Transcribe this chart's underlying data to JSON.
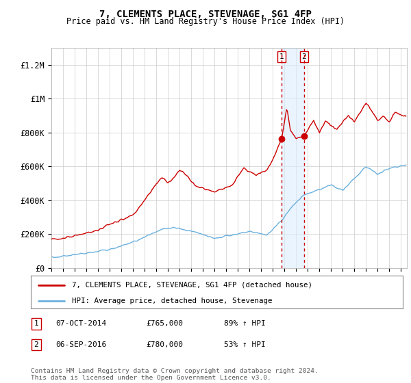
{
  "title": "7, CLEMENTS PLACE, STEVENAGE, SG1 4FP",
  "subtitle": "Price paid vs. HM Land Registry's House Price Index (HPI)",
  "legend_line1": "7, CLEMENTS PLACE, STEVENAGE, SG1 4FP (detached house)",
  "legend_line2": "HPI: Average price, detached house, Stevenage",
  "footnote": "Contains HM Land Registry data © Crown copyright and database right 2024.\nThis data is licensed under the Open Government Licence v3.0.",
  "transaction1_label": "1",
  "transaction1_date": "07-OCT-2014",
  "transaction1_price": "£765,000",
  "transaction1_hpi": "89% ↑ HPI",
  "transaction2_label": "2",
  "transaction2_date": "06-SEP-2016",
  "transaction2_price": "£780,000",
  "transaction2_hpi": "53% ↑ HPI",
  "ylim": [
    0,
    1300000
  ],
  "yticks": [
    0,
    200000,
    400000,
    600000,
    800000,
    1000000,
    1200000
  ],
  "ytick_labels": [
    "£0",
    "£200K",
    "£400K",
    "£600K",
    "£800K",
    "£1M",
    "£1.2M"
  ],
  "hpi_color": "#6ab0de",
  "property_color": "#cc0000",
  "transaction1_x": 2014.75,
  "transaction2_x": 2016.67,
  "transaction1_y": 765000,
  "transaction2_y": 780000,
  "vline_color": "#cc0000",
  "vband_color": "#ddeeff",
  "background_color": "#ffffff",
  "xmin": 1995.0,
  "xmax": 2025.5
}
